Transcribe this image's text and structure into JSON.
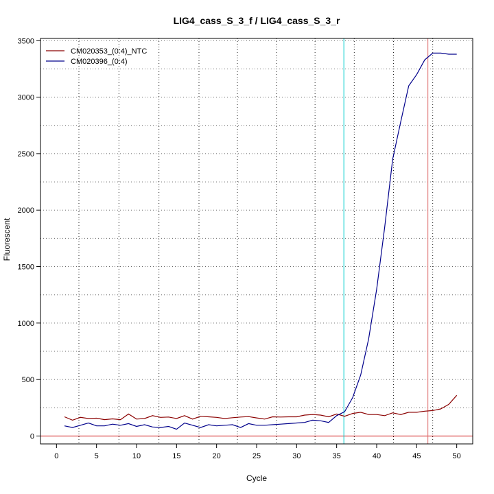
{
  "chart_data": {
    "type": "line",
    "title": "LIG4_cass_S_3_f / LIG4_cass_S_3_r",
    "xlabel": "Cycle",
    "ylabel": "Fluorescent",
    "xlim": [
      -2,
      52
    ],
    "ylim": [
      -70,
      3520
    ],
    "x_ticks": [
      0,
      5,
      10,
      15,
      20,
      25,
      30,
      35,
      40,
      45,
      50
    ],
    "y_ticks": [
      0,
      500,
      1000,
      1500,
      2000,
      2500,
      3000,
      3500
    ],
    "grid": true,
    "h_grid_values": [
      0,
      250,
      500,
      750,
      1000,
      1250,
      1500,
      1750,
      2000,
      2250,
      2500,
      2750,
      3000,
      3250,
      3500
    ],
    "v_grid_values": [
      2.8,
      7.8,
      12.8,
      17.8,
      22.6,
      27.5,
      32.3,
      37.2,
      42.1,
      47.0
    ],
    "legend_position": "top-left",
    "threshold_y": 0,
    "threshold_color": "#cc0000",
    "marker_lines": [
      {
        "x": 35.9,
        "color": "#00cccc"
      },
      {
        "x": 46.4,
        "color": "#dd6666"
      }
    ],
    "x": [
      1,
      2,
      3,
      4,
      5,
      6,
      7,
      8,
      9,
      10,
      11,
      12,
      13,
      14,
      15,
      16,
      17,
      18,
      19,
      20,
      21,
      22,
      23,
      24,
      25,
      26,
      27,
      28,
      29,
      30,
      31,
      32,
      33,
      34,
      35,
      36,
      37,
      38,
      39,
      40,
      41,
      42,
      43,
      44,
      45,
      46,
      47,
      48,
      49,
      50
    ],
    "series": [
      {
        "name": "CM020353_(0:4)_NTC",
        "color": "#8b0000",
        "values": [
          170,
          140,
          165,
          155,
          158,
          145,
          152,
          145,
          195,
          150,
          155,
          180,
          165,
          168,
          155,
          180,
          150,
          175,
          170,
          165,
          155,
          162,
          168,
          172,
          160,
          150,
          170,
          168,
          170,
          170,
          185,
          190,
          185,
          170,
          195,
          175,
          200,
          210,
          190,
          190,
          180,
          205,
          190,
          210,
          210,
          220,
          225,
          240,
          280,
          360
        ]
      },
      {
        "name": "CM020396_(0:4)",
        "color": "#00008b",
        "values": [
          90,
          75,
          95,
          115,
          90,
          90,
          105,
          95,
          110,
          85,
          100,
          80,
          75,
          85,
          60,
          115,
          95,
          75,
          100,
          90,
          95,
          100,
          75,
          110,
          95,
          95,
          100,
          105,
          110,
          115,
          120,
          140,
          135,
          120,
          180,
          215,
          340,
          540,
          860,
          1300,
          1850,
          2450,
          2780,
          3100,
          3200,
          3330,
          3390,
          3390,
          3380,
          3380
        ]
      }
    ]
  }
}
